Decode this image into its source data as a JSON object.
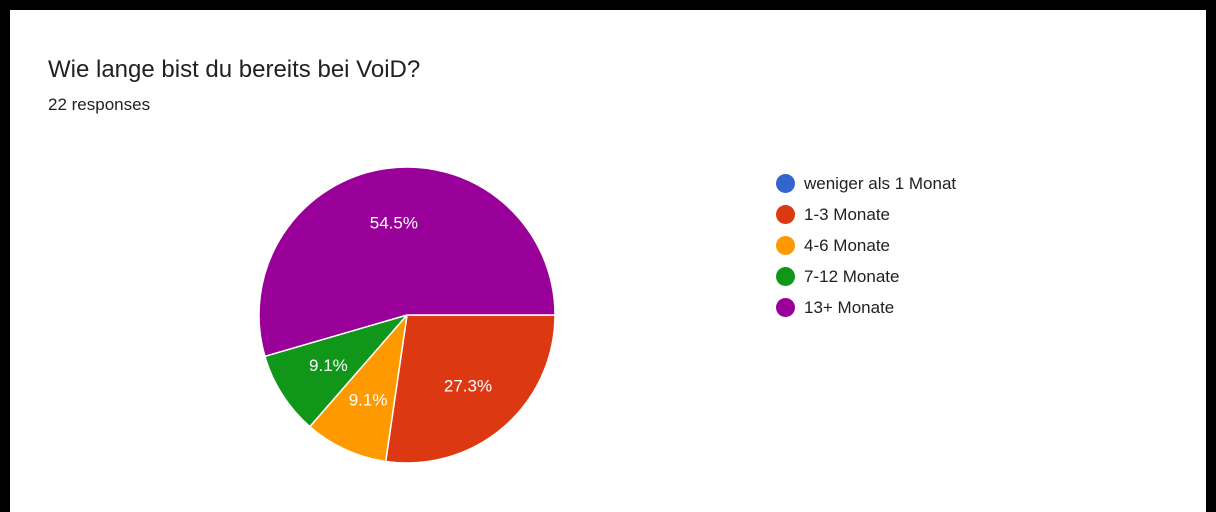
{
  "title": "Wie lange bist du bereits bei VoiD?",
  "responses_label": "22 responses",
  "chart_data": {
    "type": "pie",
    "categories": [
      "weniger als 1 Monat",
      "1-3 Monate",
      "4-6 Monate",
      "7-12 Monate",
      "13+ Monate"
    ],
    "values": [
      0,
      27.3,
      9.1,
      9.1,
      54.5
    ],
    "labels": [
      "",
      "27.3%",
      "9.1%",
      "9.1%",
      "54.5%"
    ],
    "colors": [
      "#3366cc",
      "#dc3912",
      "#ff9900",
      "#109618",
      "#990099"
    ],
    "legend_position": "right"
  }
}
